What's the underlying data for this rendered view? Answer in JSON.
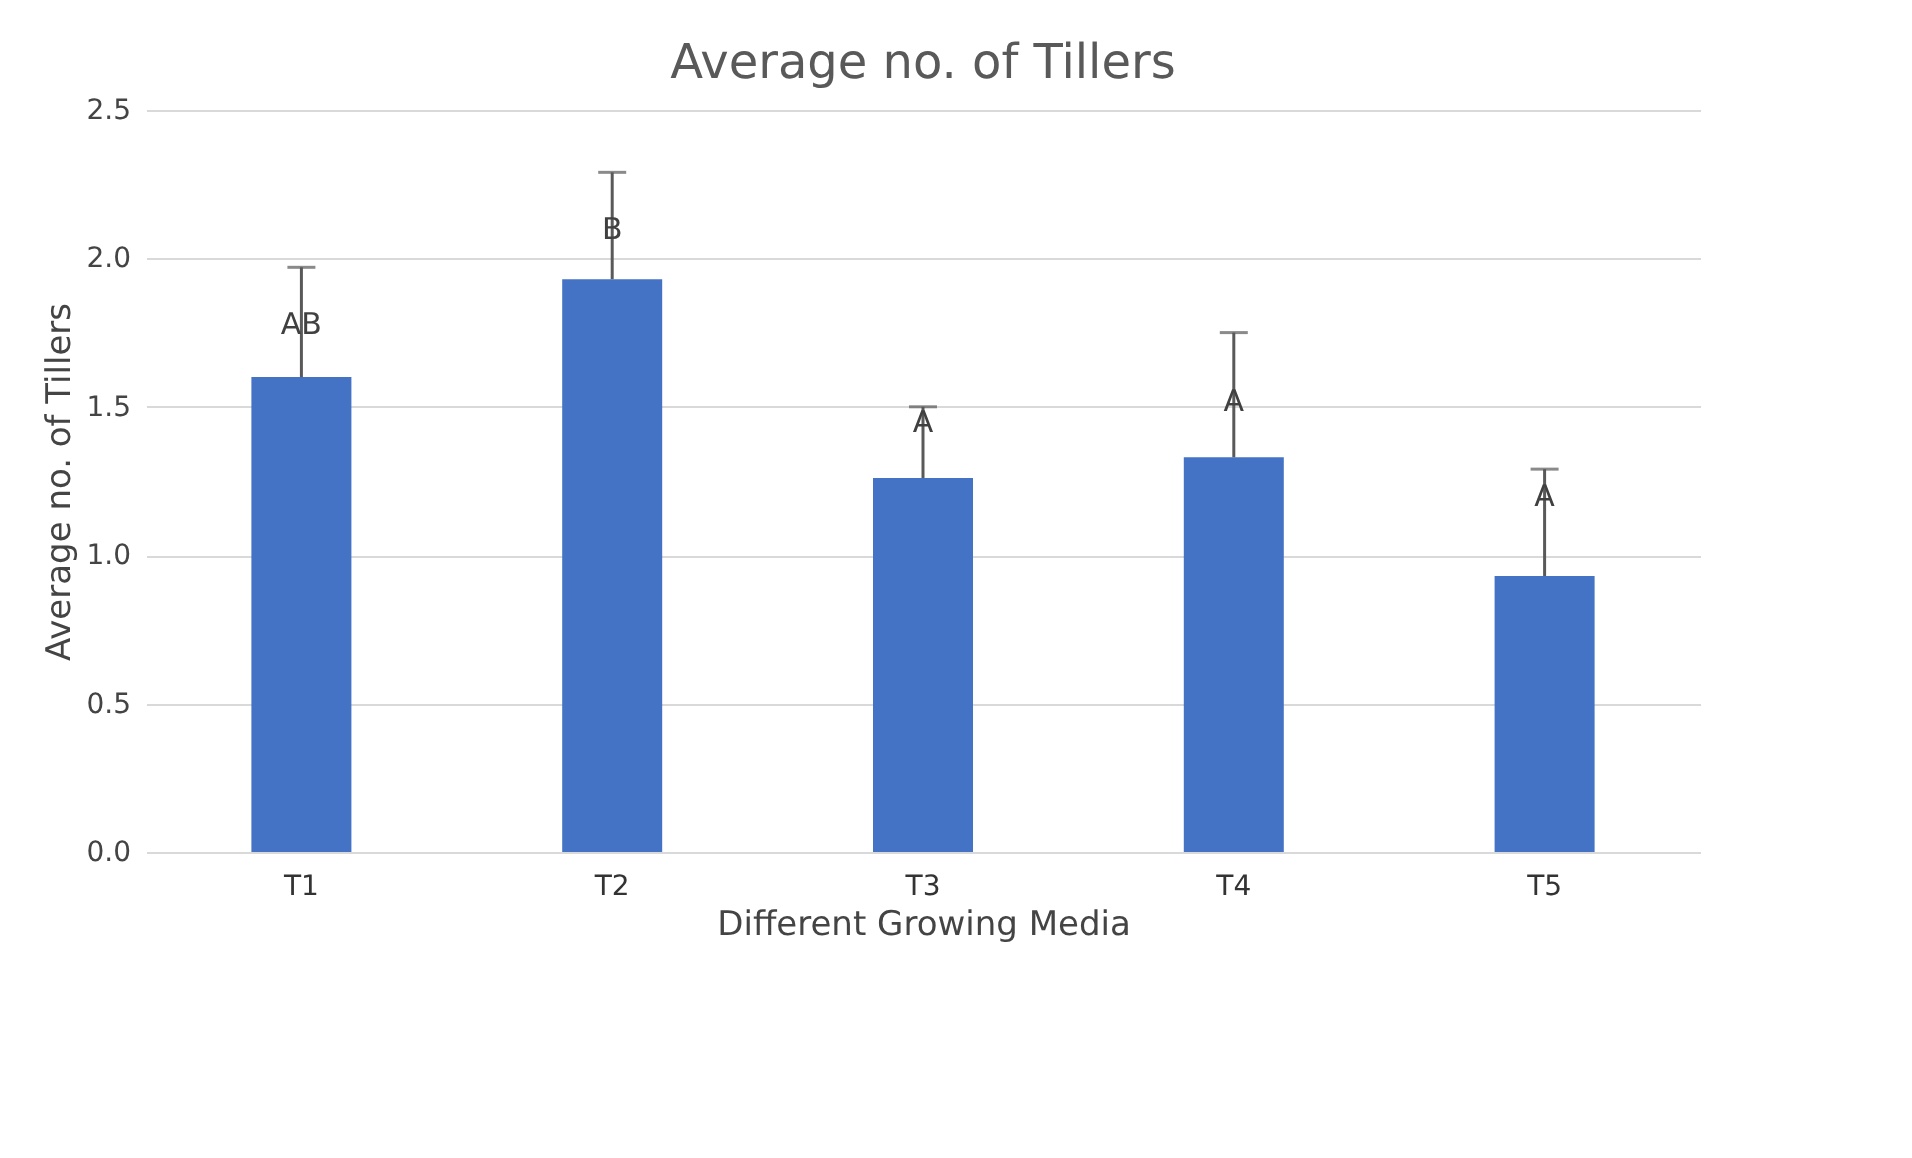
{
  "chart_data": {
    "type": "bar",
    "title": "Average no. of Tillers",
    "xlabel": "Different Growing Media",
    "ylabel": "Average no. of Tillers",
    "categories": [
      "T1",
      "T2",
      "T3",
      "T4",
      "T5"
    ],
    "values": [
      1.6,
      1.93,
      1.26,
      1.33,
      0.93
    ],
    "errors": [
      [
        1.6,
        1.97
      ],
      [
        1.93,
        2.29
      ],
      [
        1.26,
        1.5
      ],
      [
        1.33,
        1.75
      ],
      [
        0.93,
        1.29
      ]
    ],
    "color": "#4472c4",
    "ylim": [
      0,
      2.5
    ],
    "yticks": [
      {
        "value": 0,
        "label": "0.0"
      },
      0.5,
      {
        "value": 1,
        "label": "1.0"
      },
      1.5,
      {
        "value": 2,
        "label": "2.0"
      },
      2.5
    ],
    "grid": "y",
    "annotations": [
      {
        "text": "AB",
        "x": "T1",
        "y": 1.78
      },
      {
        "text": "B",
        "x": "T2",
        "y": 2.1
      },
      {
        "text": "A",
        "x": "T3",
        "y": 1.45
      },
      {
        "text": "A",
        "x": "T4",
        "y": 1.52
      },
      {
        "text": "A",
        "x": "T5",
        "y": 1.2
      }
    ]
  }
}
